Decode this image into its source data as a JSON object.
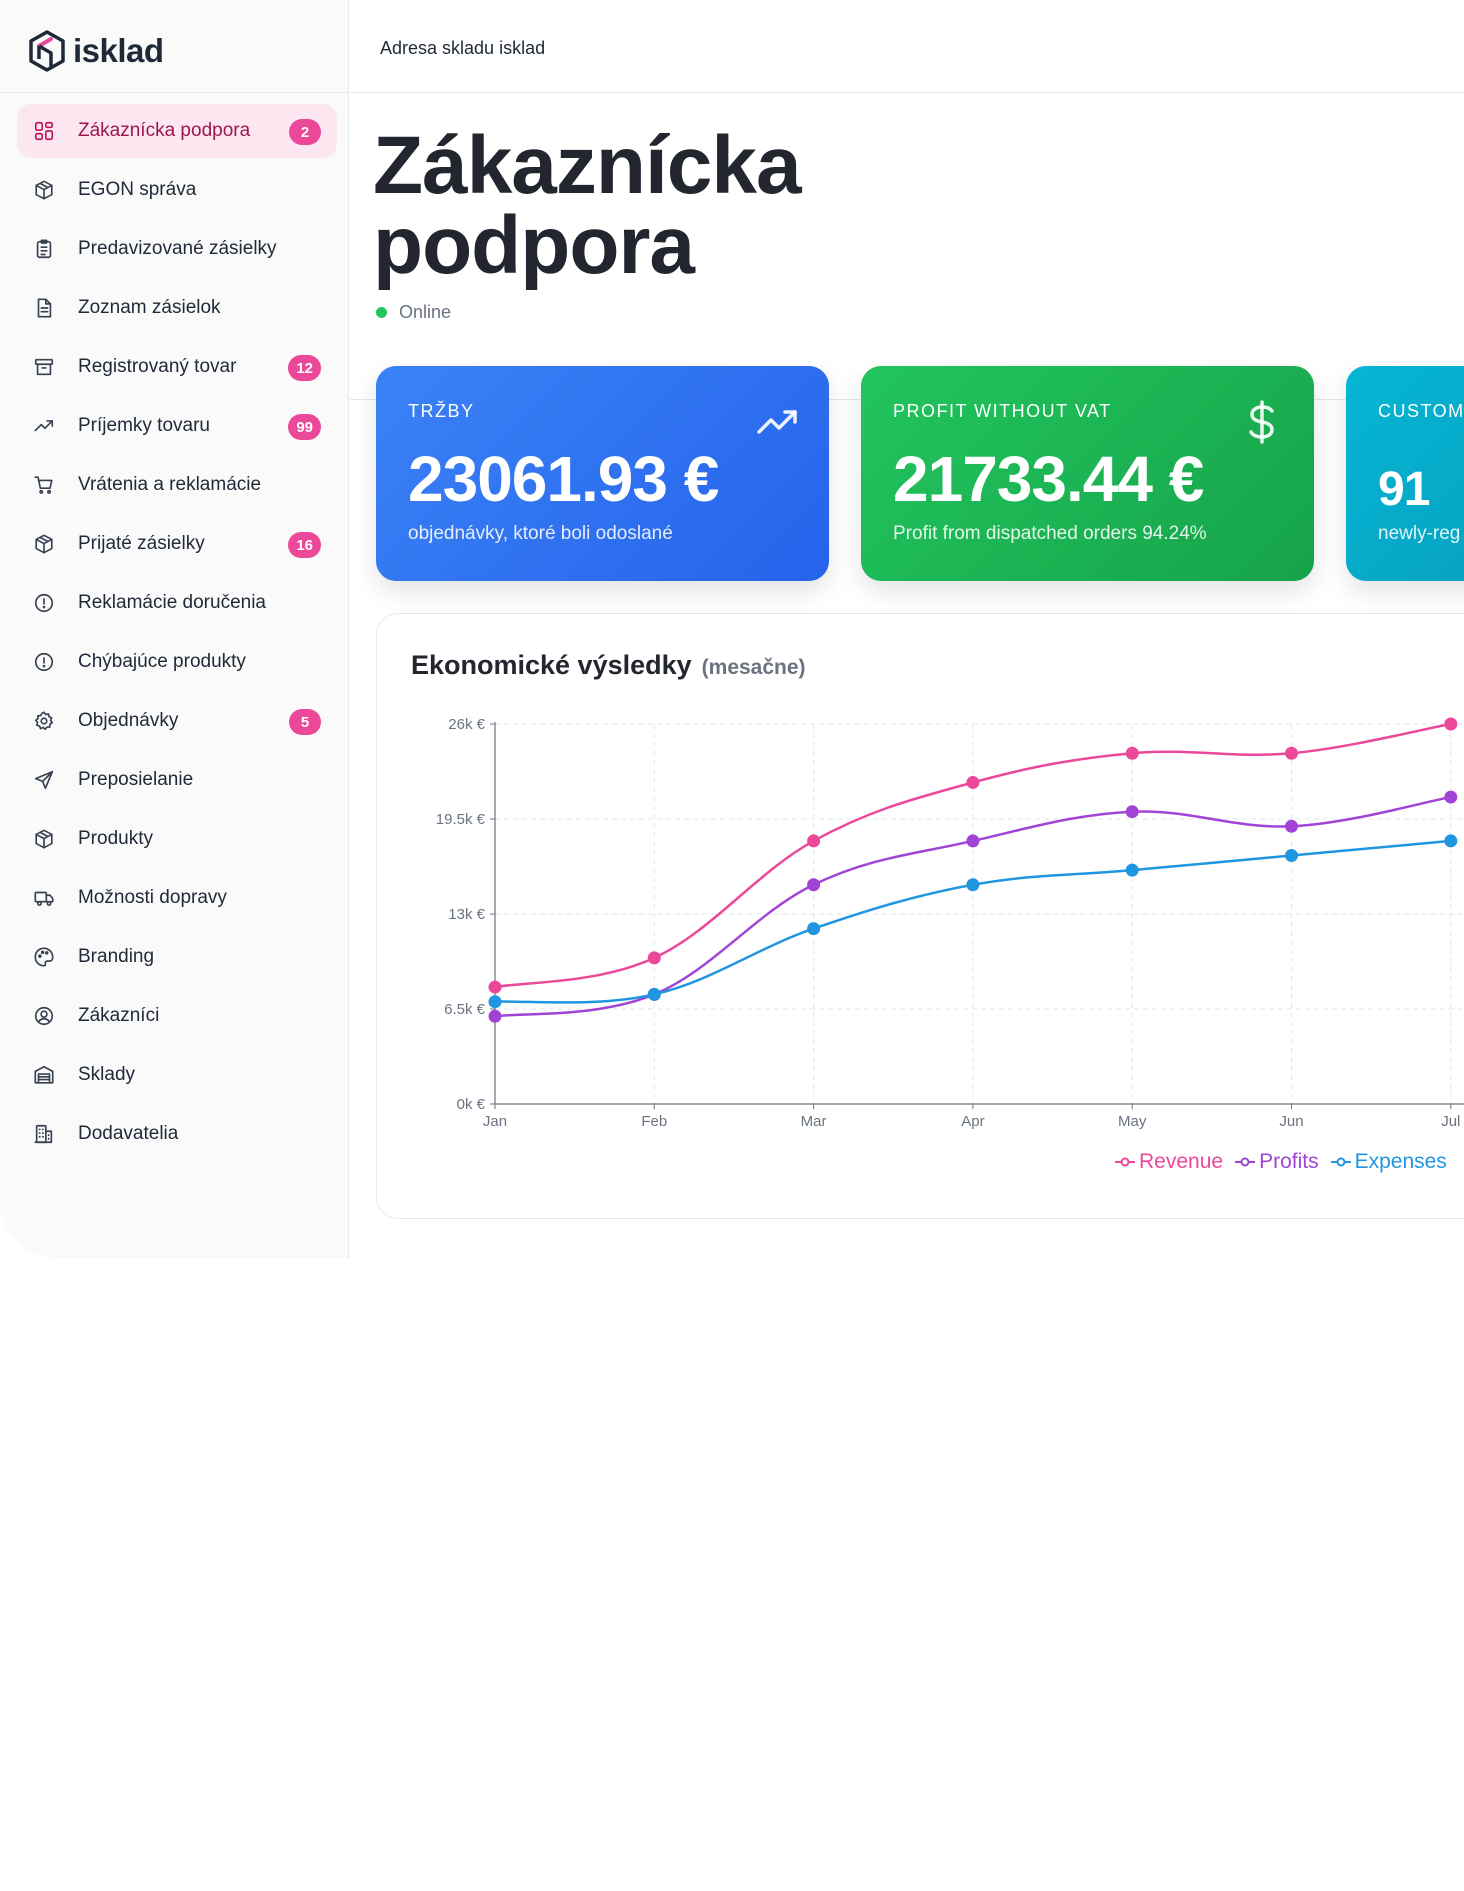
{
  "app": {
    "name": "isklad"
  },
  "topbar": {
    "text": "Adresa skladu isklad"
  },
  "sidebar": {
    "items": [
      {
        "label": "Zákaznícka podpora",
        "icon": "dashboard-grid-icon",
        "badge": "2",
        "active": true
      },
      {
        "label": "EGON správa",
        "icon": "box-icon",
        "badge": ""
      },
      {
        "label": "Predavizované zásielky",
        "icon": "clipboard-list-icon",
        "badge": ""
      },
      {
        "label": "Zoznam zásielok",
        "icon": "document-icon",
        "badge": ""
      },
      {
        "label": "Registrovaný tovar",
        "icon": "archive-icon",
        "badge": "12"
      },
      {
        "label": "Príjemky tovaru",
        "icon": "trending-up-icon",
        "badge": "99"
      },
      {
        "label": "Vrátenia a reklamácie",
        "icon": "shopping-cart-icon",
        "badge": ""
      },
      {
        "label": "Prijaté zásielky",
        "icon": "box-icon",
        "badge": "16"
      },
      {
        "label": "Reklamácie doručenia",
        "icon": "alert-circle-icon",
        "badge": ""
      },
      {
        "label": "Chýbajúce produkty",
        "icon": "alert-circle-icon",
        "badge": ""
      },
      {
        "label": "Objednávky",
        "icon": "gear-icon",
        "badge": "5"
      },
      {
        "label": "Preposielanie",
        "icon": "send-icon",
        "badge": ""
      },
      {
        "label": "Produkty",
        "icon": "box-icon",
        "badge": ""
      },
      {
        "label": "Možnosti dopravy",
        "icon": "truck-icon",
        "badge": ""
      },
      {
        "label": "Branding",
        "icon": "palette-icon",
        "badge": ""
      },
      {
        "label": "Zákazníci",
        "icon": "user-circle-icon",
        "badge": ""
      },
      {
        "label": "Sklady",
        "icon": "warehouse-icon",
        "badge": ""
      },
      {
        "label": "Dodavatelia",
        "icon": "building-icon",
        "badge": ""
      }
    ]
  },
  "page": {
    "title": "Zákaznícka podpora",
    "status": "Online",
    "status_color": "#22c55e"
  },
  "cards": [
    {
      "label": "TRŽBY",
      "value": "23061.93 €",
      "sub": "objednávky, ktoré boli odoslané",
      "icon": "trending-up-icon",
      "color": "#2563eb"
    },
    {
      "label": "PROFIT WITHOUT VAT",
      "value": "21733.44 €",
      "sub": "Profit from dispatched orders 94.24%",
      "icon": "dollar-icon",
      "color": "#16a34a"
    },
    {
      "label": "CUSTOM",
      "value": "91",
      "sub": "newly-reg",
      "icon": "",
      "color": "#0891b2"
    }
  ],
  "chart": {
    "title": "Ekonomické výsledky",
    "subtitle": "(mesačne)"
  },
  "chart_data": {
    "type": "line",
    "categories": [
      "Jan",
      "Feb",
      "Mar",
      "Apr",
      "May",
      "Jun",
      "Jul"
    ],
    "y_ticks": [
      "0k €",
      "6.5k €",
      "13k €",
      "19.5k €",
      "26k €"
    ],
    "ylim": [
      0,
      26000
    ],
    "grid": true,
    "legend_position": "bottom-right",
    "series": [
      {
        "name": "Revenue",
        "color": "#ec4899",
        "values": [
          8000,
          10000,
          18000,
          22000,
          24000,
          24000,
          26000
        ]
      },
      {
        "name": "Profits",
        "color": "#a144d6",
        "values": [
          6000,
          7500,
          15000,
          18000,
          20000,
          19000,
          21000
        ]
      },
      {
        "name": "Expenses",
        "color": "#2196e0",
        "values": [
          7000,
          7500,
          12000,
          15000,
          16000,
          17000,
          18000
        ]
      }
    ]
  }
}
